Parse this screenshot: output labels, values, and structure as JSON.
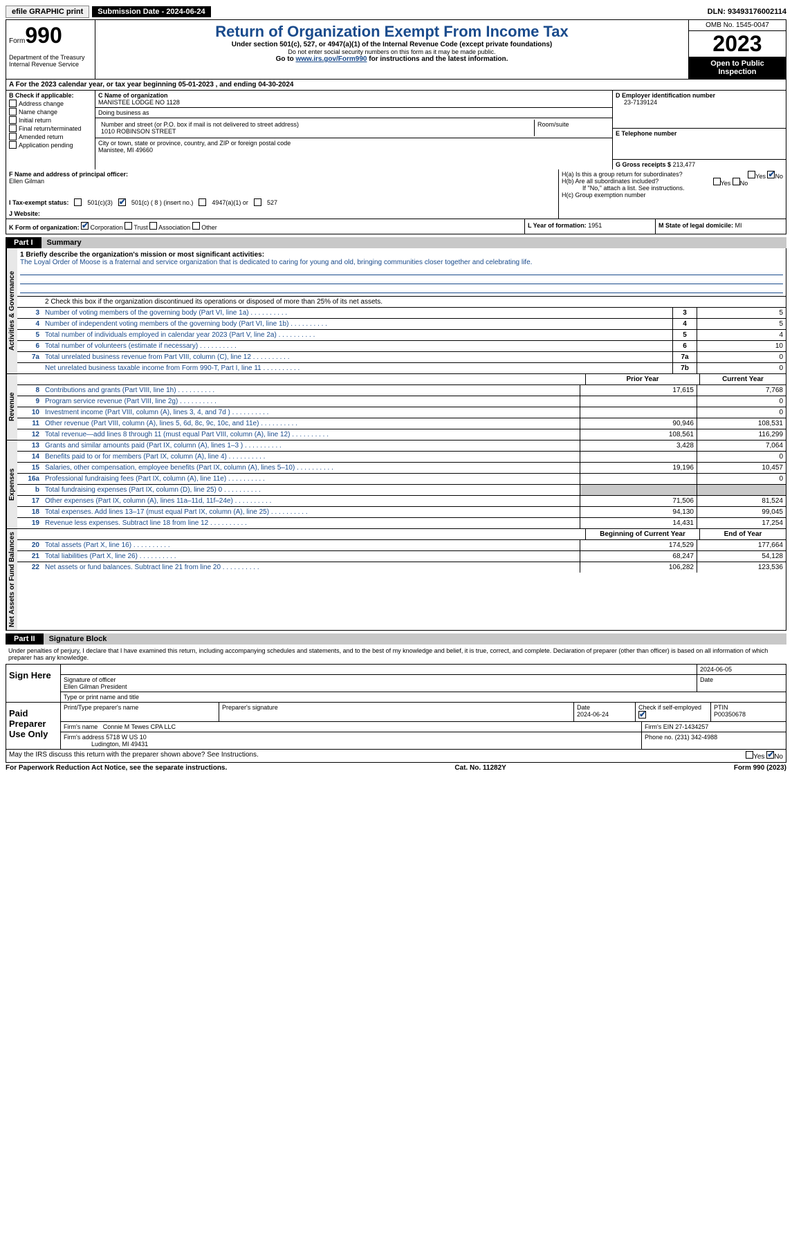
{
  "topbar": {
    "efile": "efile GRAPHIC print",
    "submission_label": "Submission Date - 2024-06-24",
    "dln": "DLN: 93493176002114"
  },
  "header": {
    "form_label": "Form",
    "form_num": "990",
    "dept": "Department of the Treasury Internal Revenue Service",
    "title": "Return of Organization Exempt From Income Tax",
    "subtitle": "Under section 501(c), 527, or 4947(a)(1) of the Internal Revenue Code (except private foundations)",
    "warn": "Do not enter social security numbers on this form as it may be made public.",
    "goto_pre": "Go to ",
    "goto_link": "www.irs.gov/Form990",
    "goto_post": " for instructions and the latest information.",
    "omb": "OMB No. 1545-0047",
    "year": "2023",
    "inspect": "Open to Public Inspection"
  },
  "row_a": "A  For the 2023 calendar year, or tax year beginning 05-01-2023   , and ending 04-30-2024",
  "col_b": {
    "hdr": "B Check if applicable:",
    "opts": [
      "Address change",
      "Name change",
      "Initial return",
      "Final return/terminated",
      "Amended return",
      "Application pending"
    ]
  },
  "col_c": {
    "name_lbl": "C Name of organization",
    "name": "MANISTEE LODGE NO 1128",
    "dba_lbl": "Doing business as",
    "dba": "",
    "street_lbl": "Number and street (or P.O. box if mail is not delivered to street address)",
    "street": "1010 ROBINSON STREET",
    "room_lbl": "Room/suite",
    "city_lbl": "City or town, state or province, country, and ZIP or foreign postal code",
    "city": "Manistee, MI  49660"
  },
  "col_d": {
    "ein_lbl": "D Employer identification number",
    "ein": "23-7139124",
    "tel_lbl": "E Telephone number",
    "tel": "",
    "gross_lbl": "G Gross receipts $",
    "gross": "213,477"
  },
  "row_f": {
    "lbl": "F  Name and address of principal officer:",
    "name": "Ellen Gilman"
  },
  "row_h": {
    "a": "H(a)  Is this a group return for subordinates?",
    "b": "H(b)  Are all subordinates included?",
    "b_note": "If \"No,\" attach a list. See instructions.",
    "c": "H(c)  Group exemption number",
    "yes": "Yes",
    "no": "No"
  },
  "row_i": {
    "lbl": "I   Tax-exempt status:",
    "o1": "501(c)(3)",
    "o2": "501(c) ( 8 ) (insert no.)",
    "o3": "4947(a)(1) or",
    "o4": "527"
  },
  "row_j": {
    "lbl": "J   Website:",
    "val": ""
  },
  "row_k": {
    "lbl": "K Form of organization:",
    "o1": "Corporation",
    "o2": "Trust",
    "o3": "Association",
    "o4": "Other"
  },
  "row_l": {
    "lbl": "L Year of formation:",
    "val": "1951"
  },
  "row_m": {
    "lbl": "M State of legal domicile:",
    "val": "MI"
  },
  "part1": {
    "num": "Part I",
    "title": "Summary"
  },
  "mission": {
    "lbl": "1   Briefly describe the organization's mission or most significant activities:",
    "text": "The Loyal Order of Moose is a fraternal and service organization that is dedicated to caring for young and old, bringing communities closer together and celebrating life."
  },
  "line2": "2   Check this box       if the organization discontinued its operations or disposed of more than 25% of its net assets.",
  "gov_lines": [
    {
      "n": "3",
      "d": "Number of voting members of the governing body (Part VI, line 1a)",
      "box": "3",
      "v": "5"
    },
    {
      "n": "4",
      "d": "Number of independent voting members of the governing body (Part VI, line 1b)",
      "box": "4",
      "v": "5"
    },
    {
      "n": "5",
      "d": "Total number of individuals employed in calendar year 2023 (Part V, line 2a)",
      "box": "5",
      "v": "4"
    },
    {
      "n": "6",
      "d": "Total number of volunteers (estimate if necessary)",
      "box": "6",
      "v": "10"
    },
    {
      "n": "7a",
      "d": "Total unrelated business revenue from Part VIII, column (C), line 12",
      "box": "7a",
      "v": "0"
    },
    {
      "n": "",
      "d": "Net unrelated business taxable income from Form 990-T, Part I, line 11",
      "box": "7b",
      "v": "0"
    }
  ],
  "rev_hdr": {
    "prior": "Prior Year",
    "current": "Current Year"
  },
  "rev_lines": [
    {
      "n": "8",
      "d": "Contributions and grants (Part VIII, line 1h)",
      "p": "17,615",
      "c": "7,768"
    },
    {
      "n": "9",
      "d": "Program service revenue (Part VIII, line 2g)",
      "p": "",
      "c": "0"
    },
    {
      "n": "10",
      "d": "Investment income (Part VIII, column (A), lines 3, 4, and 7d )",
      "p": "",
      "c": "0"
    },
    {
      "n": "11",
      "d": "Other revenue (Part VIII, column (A), lines 5, 6d, 8c, 9c, 10c, and 11e)",
      "p": "90,946",
      "c": "108,531"
    },
    {
      "n": "12",
      "d": "Total revenue—add lines 8 through 11 (must equal Part VIII, column (A), line 12)",
      "p": "108,561",
      "c": "116,299"
    }
  ],
  "exp_lines": [
    {
      "n": "13",
      "d": "Grants and similar amounts paid (Part IX, column (A), lines 1–3 )",
      "p": "3,428",
      "c": "7,064"
    },
    {
      "n": "14",
      "d": "Benefits paid to or for members (Part IX, column (A), line 4)",
      "p": "",
      "c": "0"
    },
    {
      "n": "15",
      "d": "Salaries, other compensation, employee benefits (Part IX, column (A), lines 5–10)",
      "p": "19,196",
      "c": "10,457"
    },
    {
      "n": "16a",
      "d": "Professional fundraising fees (Part IX, column (A), line 11e)",
      "p": "",
      "c": "0"
    },
    {
      "n": "b",
      "d": "Total fundraising expenses (Part IX, column (D), line 25) 0",
      "p": "shade",
      "c": "shade"
    },
    {
      "n": "17",
      "d": "Other expenses (Part IX, column (A), lines 11a–11d, 11f–24e)",
      "p": "71,506",
      "c": "81,524"
    },
    {
      "n": "18",
      "d": "Total expenses. Add lines 13–17 (must equal Part IX, column (A), line 25)",
      "p": "94,130",
      "c": "99,045"
    },
    {
      "n": "19",
      "d": "Revenue less expenses. Subtract line 18 from line 12",
      "p": "14,431",
      "c": "17,254"
    }
  ],
  "net_hdr": {
    "begin": "Beginning of Current Year",
    "end": "End of Year"
  },
  "net_lines": [
    {
      "n": "20",
      "d": "Total assets (Part X, line 16)",
      "p": "174,529",
      "c": "177,664"
    },
    {
      "n": "21",
      "d": "Total liabilities (Part X, line 26)",
      "p": "68,247",
      "c": "54,128"
    },
    {
      "n": "22",
      "d": "Net assets or fund balances. Subtract line 21 from line 20",
      "p": "106,282",
      "c": "123,536"
    }
  ],
  "vtabs": {
    "gov": "Activities & Governance",
    "rev": "Revenue",
    "exp": "Expenses",
    "net": "Net Assets or Fund Balances"
  },
  "part2": {
    "num": "Part II",
    "title": "Signature Block"
  },
  "sig_text": "Under penalties of perjury, I declare that I have examined this return, including accompanying schedules and statements, and to the best of my knowledge and belief, it is true, correct, and complete. Declaration of preparer (other than officer) is based on all information of which preparer has any knowledge.",
  "sign_here": {
    "lbl": "Sign Here",
    "sig_of": "Signature of officer",
    "date": "2024-06-05",
    "name": "Ellen Gilman  President",
    "type_lbl": "Type or print name and title"
  },
  "paid": {
    "lbl": "Paid Preparer Use Only",
    "print_lbl": "Print/Type preparer's name",
    "prep_sig_lbl": "Preparer's signature",
    "date_lbl": "Date",
    "date": "2024-06-24",
    "check_lbl": "Check        if self-employed",
    "ptin_lbl": "PTIN",
    "ptin": "P00350678",
    "firm_name_lbl": "Firm's name",
    "firm_name": "Connie M Tewes CPA LLC",
    "firm_ein_lbl": "Firm's EIN",
    "firm_ein": "27-1434257",
    "firm_addr_lbl": "Firm's address",
    "firm_addr1": "5718 W US 10",
    "firm_addr2": "Ludington, MI  49431",
    "phone_lbl": "Phone no.",
    "phone": "(231) 342-4988"
  },
  "discuss": "May the IRS discuss this return with the preparer shown above? See Instructions.",
  "footer": {
    "left": "For Paperwork Reduction Act Notice, see the separate instructions.",
    "mid": "Cat. No. 11282Y",
    "right": "Form 990 (2023)"
  },
  "colors": {
    "link": "#1a4b8c",
    "shade": "#c8c8c8"
  }
}
